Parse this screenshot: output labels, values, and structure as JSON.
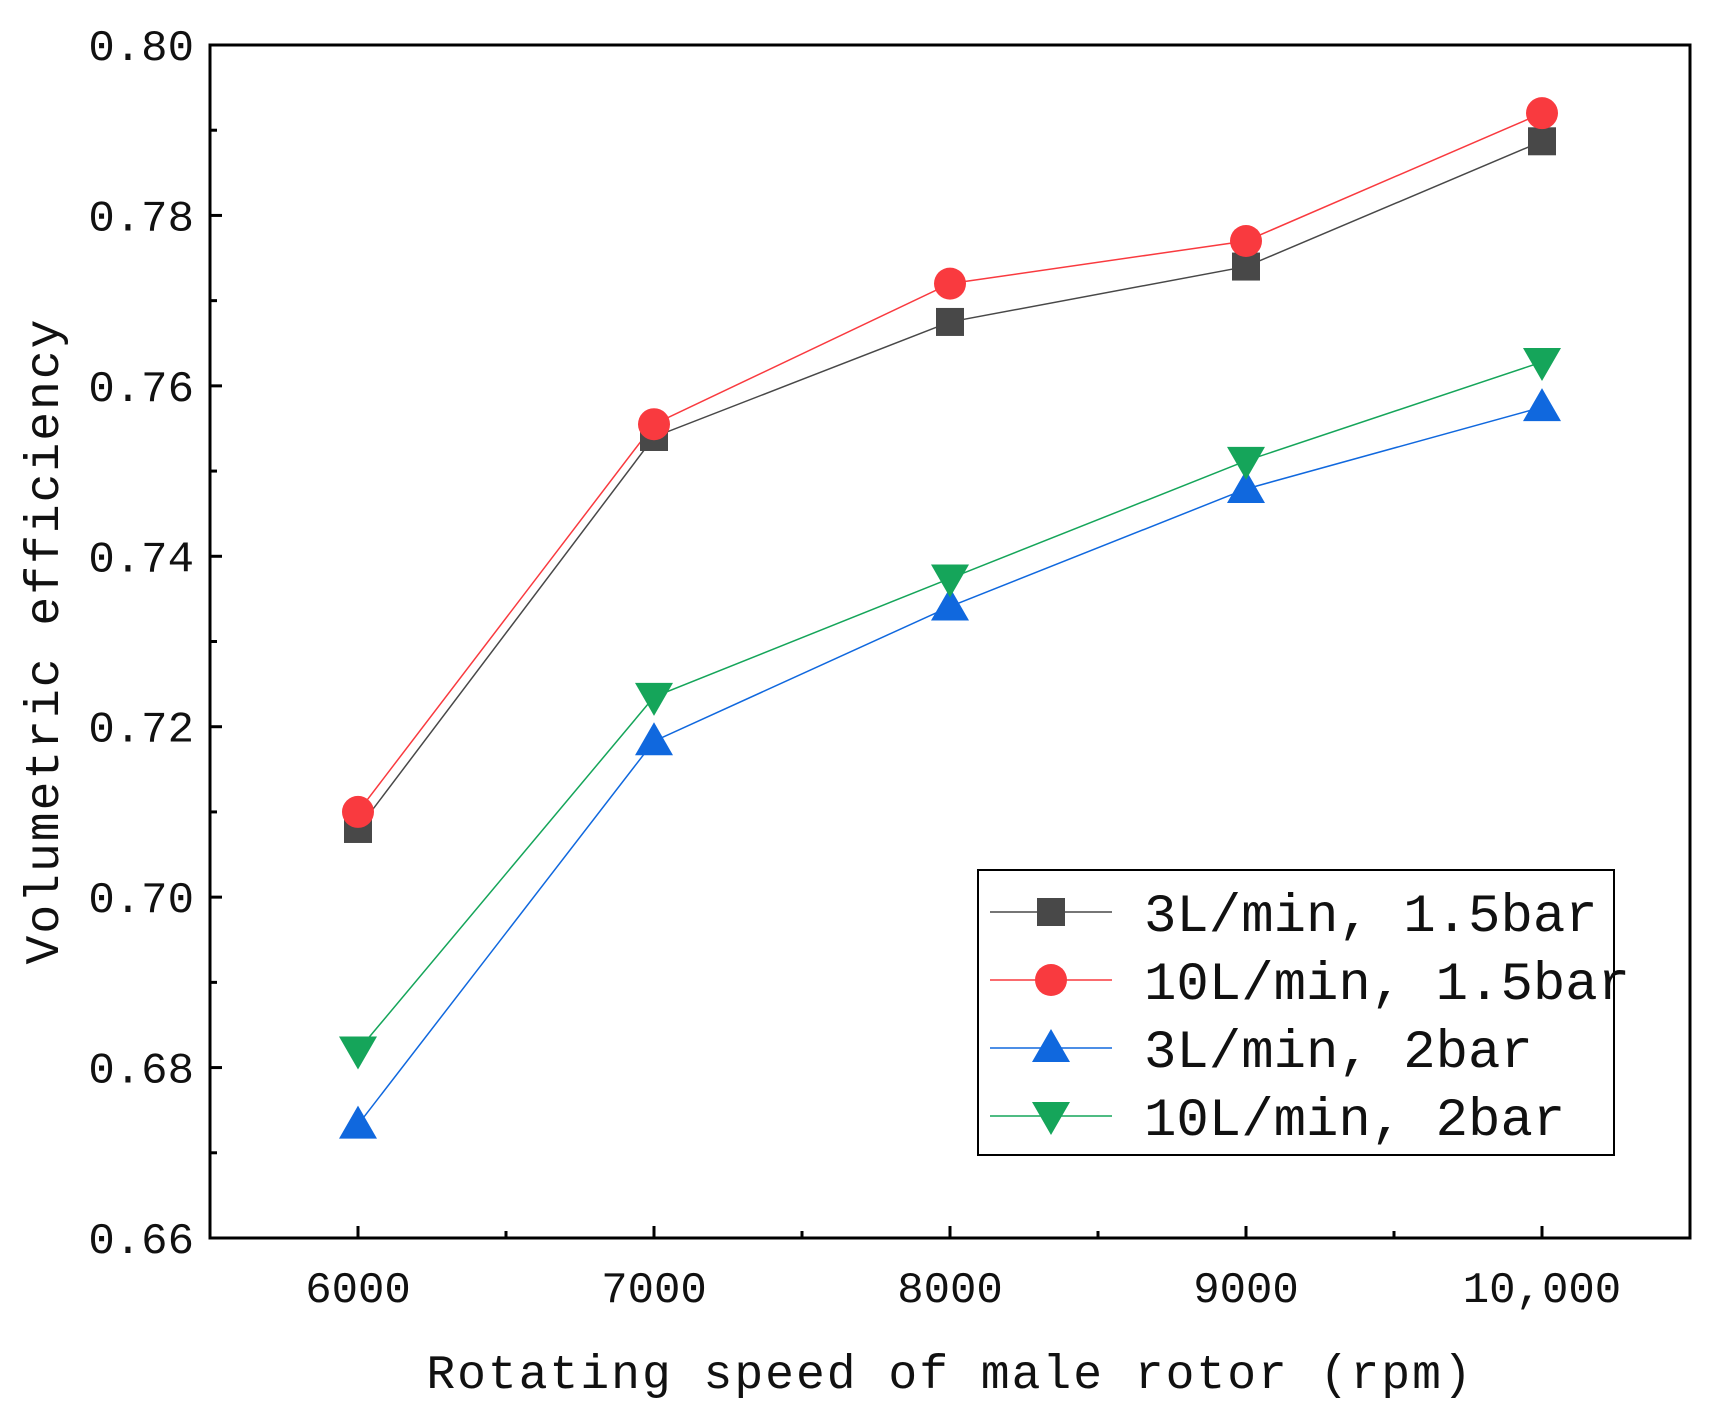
{
  "chart_data": {
    "type": "line",
    "title": "",
    "xlabel": "Rotating speed of male rotor (rpm)",
    "ylabel": "Volumetric efficiency",
    "x": [
      6000,
      7000,
      8000,
      9000,
      10000
    ],
    "x_tick_labels": [
      "6000",
      "7000",
      "8000",
      "9000",
      "10,000"
    ],
    "xlim": [
      5500,
      10500
    ],
    "ylim": [
      0.66,
      0.8
    ],
    "y_ticks": [
      0.66,
      0.68,
      0.7,
      0.72,
      0.74,
      0.76,
      0.78,
      0.8
    ],
    "y_tick_labels": [
      "0.66",
      "0.68",
      "0.70",
      "0.72",
      "0.74",
      "0.76",
      "0.78",
      "0.80"
    ],
    "legend_position": "bottom-right",
    "grid": false,
    "series": [
      {
        "name": "3L/min, 1.5bar",
        "marker": "square",
        "color": "#484848",
        "values": [
          0.708,
          0.754,
          0.7675,
          0.774,
          0.7887
        ]
      },
      {
        "name": "10L/min, 1.5bar",
        "marker": "circle",
        "color": "#f93a3f",
        "values": [
          0.71,
          0.7555,
          0.772,
          0.777,
          0.792
        ]
      },
      {
        "name": "3L/min, 2bar",
        "marker": "triangle-up",
        "color": "#1068de",
        "values": [
          0.6733,
          0.7183,
          0.7341,
          0.7479,
          0.7575
        ]
      },
      {
        "name": "10L/min, 2bar",
        "marker": "triangle-down",
        "color": "#15a55a",
        "values": [
          0.682,
          0.7235,
          0.7374,
          0.7512,
          0.7628
        ]
      }
    ]
  }
}
